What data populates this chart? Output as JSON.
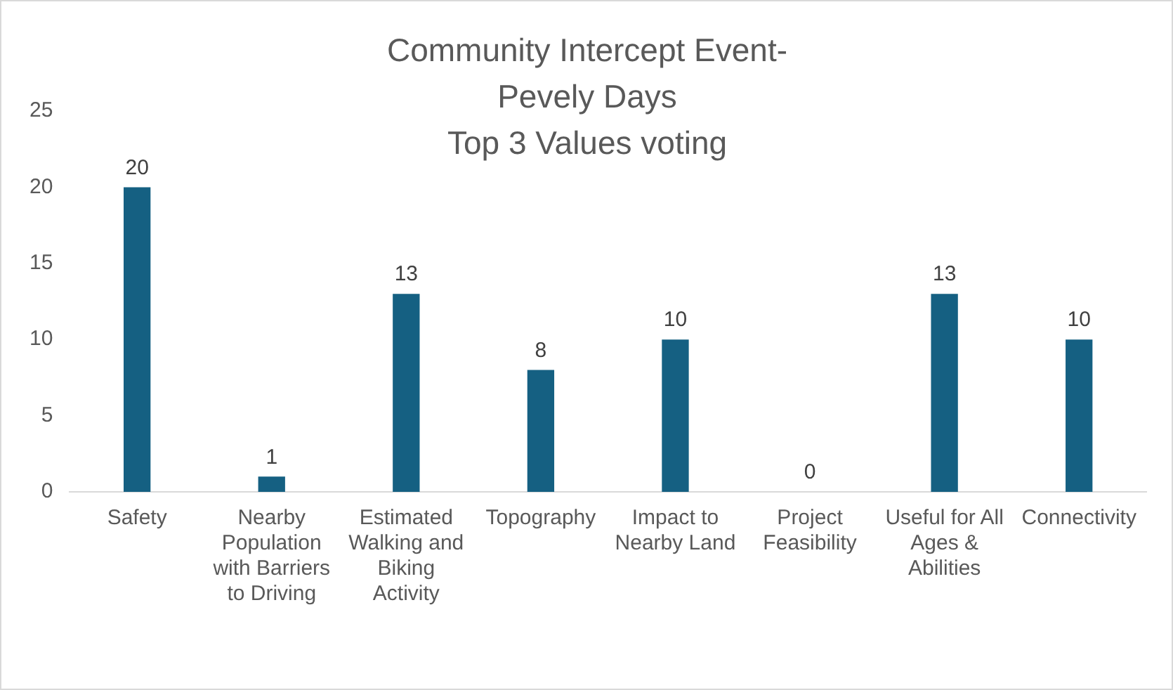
{
  "chart_data": {
    "type": "bar",
    "title": "Community Intercept Event-\nPevely Days\nTop 3 Values voting",
    "categories": [
      "Safety",
      "Nearby Population with Barriers to Driving",
      "Estimated Walking and Biking Activity",
      "Topography",
      "Impact to Nearby Land",
      "Project Feasibility",
      "Useful for All Ages & Abilities",
      "Connectivity"
    ],
    "values": [
      20,
      1,
      13,
      8,
      10,
      0,
      13,
      10
    ],
    "color": "#156082",
    "ylim": [
      0,
      25
    ],
    "yticks": [
      0,
      5,
      10,
      15,
      20,
      25
    ],
    "grid": false,
    "data_labels": true,
    "legend": false
  }
}
